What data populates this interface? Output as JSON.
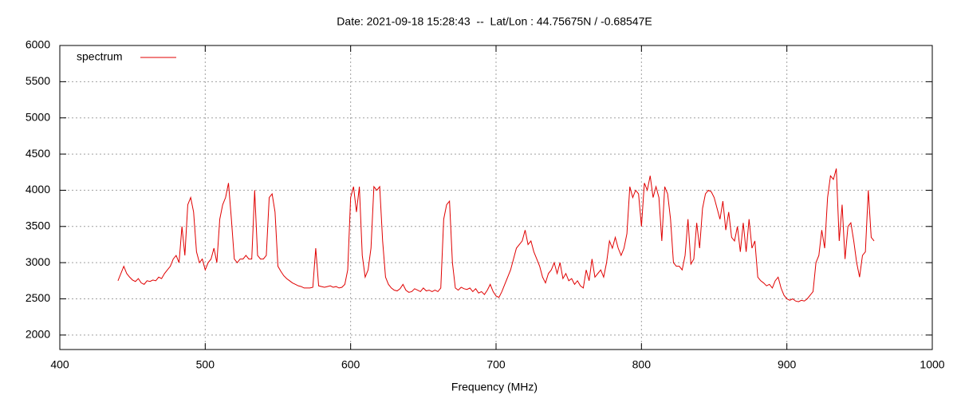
{
  "chart_data": {
    "type": "line",
    "title": "Date: 2021-09-18 15:28:43  --  Lat/Lon : 44.75675N / -0.68547E",
    "xlabel": "Frequency (MHz)",
    "xlim": [
      400,
      1000
    ],
    "xticks": [
      400,
      500,
      600,
      700,
      800,
      900,
      1000
    ],
    "ylim": [
      1800,
      6000
    ],
    "yticks": [
      2000,
      2500,
      3000,
      3500,
      4000,
      4500,
      5000,
      5500,
      6000
    ],
    "grid": true,
    "legend": "top-left",
    "series": [
      {
        "name": "spectrum",
        "color": "#e00000",
        "x": [
          440,
          442,
          444,
          446,
          448,
          450,
          452,
          454,
          456,
          458,
          460,
          462,
          464,
          466,
          468,
          470,
          472,
          474,
          476,
          478,
          480,
          482,
          484,
          486,
          488,
          490,
          492,
          494,
          496,
          498,
          500,
          502,
          504,
          506,
          508,
          510,
          512,
          514,
          516,
          518,
          520,
          522,
          524,
          526,
          528,
          530,
          532,
          534,
          536,
          538,
          540,
          542,
          544,
          546,
          548,
          550,
          552,
          554,
          556,
          558,
          560,
          562,
          564,
          566,
          568,
          570,
          572,
          574,
          576,
          578,
          580,
          582,
          584,
          586,
          588,
          590,
          592,
          594,
          596,
          598,
          600,
          602,
          604,
          606,
          608,
          610,
          612,
          614,
          616,
          618,
          620,
          622,
          624,
          626,
          628,
          630,
          632,
          634,
          636,
          638,
          640,
          642,
          644,
          646,
          648,
          650,
          652,
          654,
          656,
          658,
          660,
          662,
          664,
          666,
          668,
          670,
          672,
          674,
          676,
          678,
          680,
          682,
          684,
          686,
          688,
          690,
          692,
          694,
          696,
          698,
          700,
          702,
          704,
          706,
          708,
          710,
          712,
          714,
          716,
          718,
          720,
          722,
          724,
          726,
          728,
          730,
          732,
          734,
          736,
          738,
          740,
          742,
          744,
          746,
          748,
          750,
          752,
          754,
          756,
          758,
          760,
          762,
          764,
          766,
          768,
          770,
          772,
          774,
          776,
          778,
          780,
          782,
          784,
          786,
          788,
          790,
          792,
          794,
          796,
          798,
          800,
          802,
          804,
          806,
          808,
          810,
          812,
          814,
          816,
          818,
          820,
          822,
          824,
          826,
          828,
          830,
          832,
          834,
          836,
          838,
          840,
          842,
          844,
          846,
          848,
          850,
          852,
          854,
          856,
          858,
          860,
          862,
          864,
          866,
          868,
          870,
          872,
          874,
          876,
          878,
          880,
          882,
          884,
          886,
          888,
          890,
          892,
          894,
          896,
          898,
          900,
          902,
          904,
          906,
          908,
          910,
          912,
          914,
          916,
          918,
          920,
          922,
          924,
          926,
          928,
          930,
          932,
          934,
          936,
          938,
          940,
          942,
          944,
          946,
          948,
          950,
          952,
          954,
          956,
          958,
          960
        ],
        "values": [
          2750,
          2850,
          2950,
          2850,
          2800,
          2760,
          2740,
          2780,
          2720,
          2700,
          2750,
          2740,
          2760,
          2750,
          2800,
          2780,
          2850,
          2900,
          2950,
          3050,
          3100,
          3000,
          3500,
          3100,
          3800,
          3900,
          3700,
          3150,
          3000,
          3050,
          2900,
          3000,
          3050,
          3200,
          3000,
          3600,
          3800,
          3900,
          4100,
          3600,
          3050,
          3000,
          3050,
          3050,
          3100,
          3050,
          3050,
          4000,
          3100,
          3050,
          3050,
          3100,
          3900,
          3950,
          3700,
          2950,
          2880,
          2820,
          2780,
          2750,
          2720,
          2700,
          2680,
          2670,
          2650,
          2650,
          2650,
          2660,
          3200,
          2680,
          2670,
          2660,
          2670,
          2680,
          2660,
          2670,
          2650,
          2660,
          2700,
          2900,
          3900,
          4050,
          3700,
          4050,
          3100,
          2800,
          2900,
          3200,
          4050,
          4000,
          4050,
          3300,
          2800,
          2700,
          2650,
          2620,
          2610,
          2640,
          2700,
          2620,
          2590,
          2600,
          2640,
          2620,
          2600,
          2650,
          2610,
          2620,
          2600,
          2620,
          2600,
          2650,
          3600,
          3800,
          3850,
          3000,
          2650,
          2620,
          2660,
          2640,
          2630,
          2650,
          2600,
          2640,
          2580,
          2600,
          2560,
          2620,
          2700,
          2600,
          2540,
          2520,
          2600,
          2700,
          2800,
          2900,
          3050,
          3200,
          3250,
          3300,
          3450,
          3250,
          3300,
          3150,
          3050,
          2950,
          2800,
          2720,
          2850,
          2900,
          3000,
          2850,
          3000,
          2780,
          2850,
          2750,
          2780,
          2700,
          2750,
          2680,
          2650,
          2900,
          2750,
          3050,
          2800,
          2850,
          2900,
          2800,
          3000,
          3300,
          3200,
          3350,
          3200,
          3100,
          3200,
          3400,
          4050,
          3900,
          4000,
          3950,
          3500,
          4100,
          4000,
          4200,
          3900,
          4050,
          3900,
          3300,
          4050,
          3950,
          3600,
          3000,
          2950,
          2950,
          2900,
          3100,
          3600,
          2980,
          3050,
          3550,
          3200,
          3750,
          3950,
          4000,
          3980,
          3900,
          3750,
          3600,
          3850,
          3450,
          3700,
          3350,
          3300,
          3500,
          3150,
          3550,
          3150,
          3600,
          3200,
          3300,
          2800,
          2750,
          2720,
          2680,
          2700,
          2650,
          2750,
          2800,
          2650,
          2550,
          2500,
          2480,
          2500,
          2470,
          2460,
          2480,
          2470,
          2500,
          2550,
          2600,
          3000,
          3100,
          3450,
          3200,
          3900,
          4200,
          4150,
          4300,
          3300,
          3800,
          3050,
          3500,
          3550,
          3300,
          3000,
          2800,
          3100,
          3150,
          4000,
          3350,
          3300
        ]
      }
    ]
  }
}
